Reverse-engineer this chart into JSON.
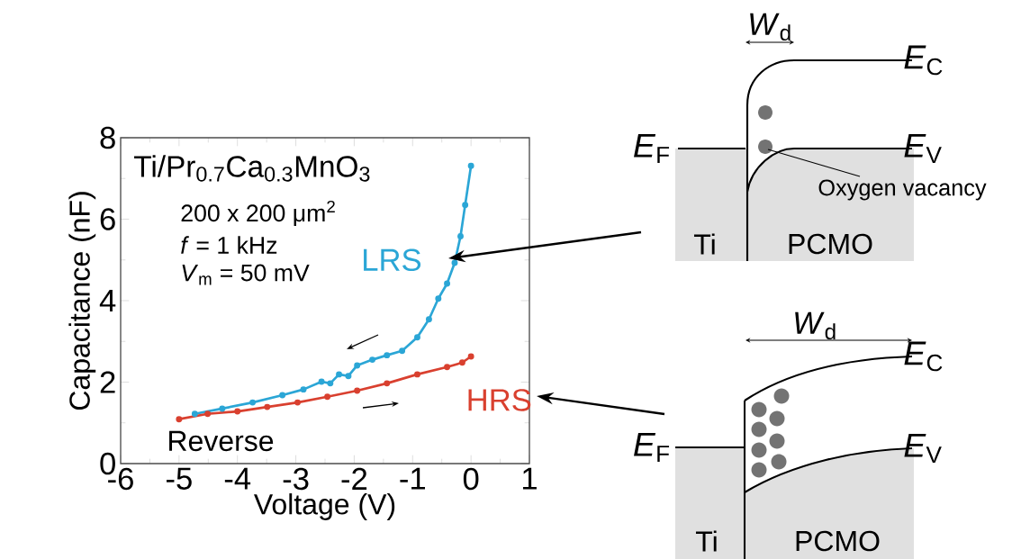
{
  "chart_data": {
    "type": "line",
    "xlabel": "Voltage (V)",
    "ylabel": "Capacitance (nF)",
    "xlim": [
      -6,
      1
    ],
    "ylim": [
      0,
      8
    ],
    "xticks": [
      -6,
      -5,
      -4,
      -3,
      -2,
      -1,
      0,
      1
    ],
    "yticks": [
      0,
      2,
      4,
      6,
      8
    ],
    "marker": "circle",
    "line_style": "solid",
    "series": [
      {
        "name": "LRS",
        "color": "#2ba6d6",
        "x": [
          -4.73,
          -4.26,
          -3.74,
          -3.23,
          -2.87,
          -2.56,
          -2.41,
          -2.26,
          -2.1,
          -1.95,
          -1.69,
          -1.44,
          -1.18,
          -0.92,
          -0.72,
          -0.56,
          -0.41,
          -0.28,
          -0.18,
          -0.1,
          0
        ],
        "values": [
          1.22,
          1.35,
          1.5,
          1.68,
          1.82,
          2.01,
          1.97,
          2.19,
          2.15,
          2.41,
          2.55,
          2.66,
          2.77,
          3.1,
          3.54,
          4.05,
          4.42,
          4.93,
          5.58,
          6.35,
          7.31
        ]
      },
      {
        "name": "HRS",
        "color": "#d9402f",
        "x": [
          -5,
          -4.51,
          -4,
          -3.49,
          -2.97,
          -2.46,
          -1.95,
          -1.44,
          -0.92,
          -0.41,
          -0.15,
          0
        ],
        "values": [
          1.09,
          1.22,
          1.28,
          1.39,
          1.5,
          1.64,
          1.79,
          1.97,
          2.19,
          2.37,
          2.48,
          2.63
        ]
      }
    ],
    "annotations": [
      "Ti/Pr$_{0.7}$Ca$_{0.3}$MnO$_{3}$",
      "200 x 200 μm$^{2}$",
      "*f* = 1 kHz",
      "*V*$_{m}$ = 50 mV",
      "Reverse",
      "*W*$_{d}$",
      "*E*$_{C}$",
      "*E*$_{F}$",
      "*E*$_{V}$",
      "Oxygen vacancy",
      "Ti",
      "PCMO",
      "*W*$_{d}$",
      "*E*$_{C}$",
      "*E*$_{F}$",
      "*E*$_{V}$",
      "Ti",
      "PCMO"
    ]
  }
}
